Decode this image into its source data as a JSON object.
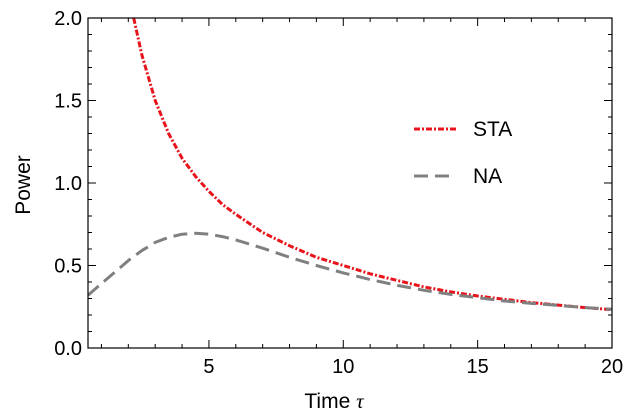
{
  "chart_data": {
    "type": "line",
    "xlabel": "Time",
    "xlabel_symbol": "τ",
    "ylabel": "Power",
    "xlim": [
      0.5,
      20
    ],
    "ylim": [
      0,
      2
    ],
    "x_ticks": [
      5,
      10,
      15,
      20
    ],
    "x_tick_labels": [
      "5",
      "10",
      "15",
      "20"
    ],
    "y_ticks": [
      0,
      0.5,
      1,
      1.5,
      2
    ],
    "y_tick_labels": [
      "0.0",
      "0.5",
      "1.0",
      "1.5",
      "2.0"
    ],
    "grid": false,
    "legend_position": "right-center",
    "series": [
      {
        "name": "STA",
        "color": "#e8141c",
        "style": "dot-dash",
        "x": [
          2.2,
          2.5,
          3,
          3.5,
          4,
          4.5,
          5,
          5.5,
          6,
          7,
          8,
          9,
          10,
          11,
          12,
          13,
          14,
          15,
          16,
          17,
          18,
          19,
          20
        ],
        "y": [
          2.0,
          1.78,
          1.5,
          1.3,
          1.15,
          1.04,
          0.95,
          0.87,
          0.81,
          0.7,
          0.62,
          0.55,
          0.5,
          0.45,
          0.41,
          0.37,
          0.34,
          0.315,
          0.295,
          0.275,
          0.26,
          0.245,
          0.232
        ]
      },
      {
        "name": "NA",
        "color": "#808080",
        "style": "dashed",
        "x": [
          0.5,
          1,
          1.5,
          2,
          2.5,
          3,
          3.5,
          4,
          4.5,
          5,
          5.5,
          6,
          7,
          8,
          9,
          10,
          11,
          12,
          13,
          14,
          15,
          16,
          17,
          18,
          19,
          20
        ],
        "y": [
          0.32,
          0.39,
          0.46,
          0.53,
          0.59,
          0.64,
          0.67,
          0.69,
          0.695,
          0.69,
          0.675,
          0.655,
          0.605,
          0.55,
          0.5,
          0.455,
          0.415,
          0.38,
          0.35,
          0.325,
          0.305,
          0.285,
          0.27,
          0.258,
          0.245,
          0.235
        ]
      }
    ]
  }
}
